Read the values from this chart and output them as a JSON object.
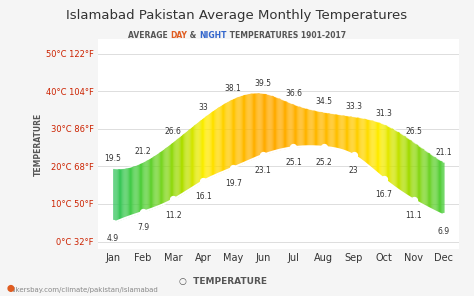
{
  "title": "Islamabad Pakistan Average Monthly Temperatures",
  "subtitle_parts": [
    "AVERAGE ",
    "DAY",
    " & ",
    "NIGHT",
    " TEMPERATURES 1901-2017"
  ],
  "subtitle_colors": [
    "#555555",
    "#e05c20",
    "#555555",
    "#3366cc",
    "#555555"
  ],
  "months": [
    "Jan",
    "Feb",
    "Mar",
    "Apr",
    "May",
    "Jun",
    "Jul",
    "Aug",
    "Sep",
    "Oct",
    "Nov",
    "Dec"
  ],
  "day_temps": [
    19.5,
    21.2,
    26.6,
    33,
    38.1,
    39.5,
    36.6,
    34.5,
    33.3,
    31.3,
    26.5,
    21.1
  ],
  "night_temps": [
    4.9,
    7.9,
    11.2,
    16.1,
    19.7,
    23.1,
    25.1,
    25.2,
    23,
    16.7,
    11.1,
    6.9
  ],
  "yticks_celsius": [
    0,
    10,
    20,
    30,
    40,
    50
  ],
  "yticks_labels": [
    "0°C 32°F",
    "10°C 50°F",
    "20°C 68°F",
    "30°C 86°F",
    "40°C 104°F",
    "50°C 122°F"
  ],
  "ylim": [
    -2,
    54
  ],
  "bg_color": "#f5f5f5",
  "plot_bg_color": "#ffffff",
  "grid_color": "#dddddd",
  "night_line_color": "#ffffff",
  "day_line_color": "#ffffff",
  "watermark": "hikersbay.com/climate/pakistan/islamabad",
  "ylabel": "TEMPERATURE",
  "legend_label": "TEMPERATURE"
}
